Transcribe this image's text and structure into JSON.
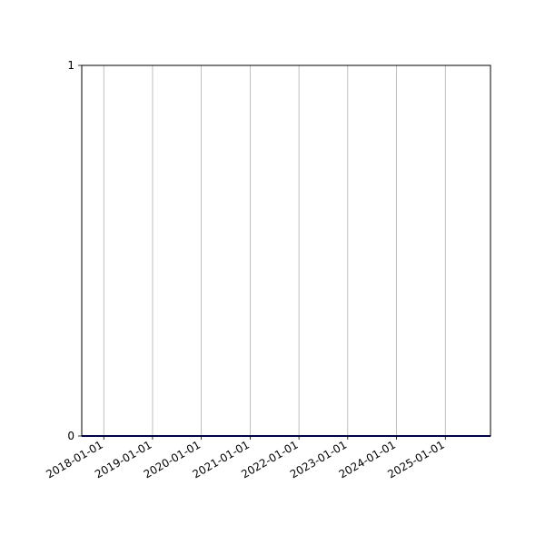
{
  "chart_data": {
    "type": "line",
    "title": "",
    "xlabel": "",
    "ylabel": "",
    "x_axis_type": "date",
    "xlim": [
      "2017-07-20",
      "2025-12-05"
    ],
    "ylim": [
      0,
      1
    ],
    "x_ticks": [
      "2018-01-01",
      "2019-01-01",
      "2020-01-01",
      "2021-01-01",
      "2022-01-01",
      "2023-01-01",
      "2024-01-01",
      "2025-01-01"
    ],
    "y_ticks": [
      "0",
      "1"
    ],
    "grid": "vertical",
    "series": [
      {
        "x": [
          "2017-07-20",
          "2025-12-05"
        ],
        "y": [
          0,
          0
        ],
        "color": "#00008b"
      }
    ]
  }
}
